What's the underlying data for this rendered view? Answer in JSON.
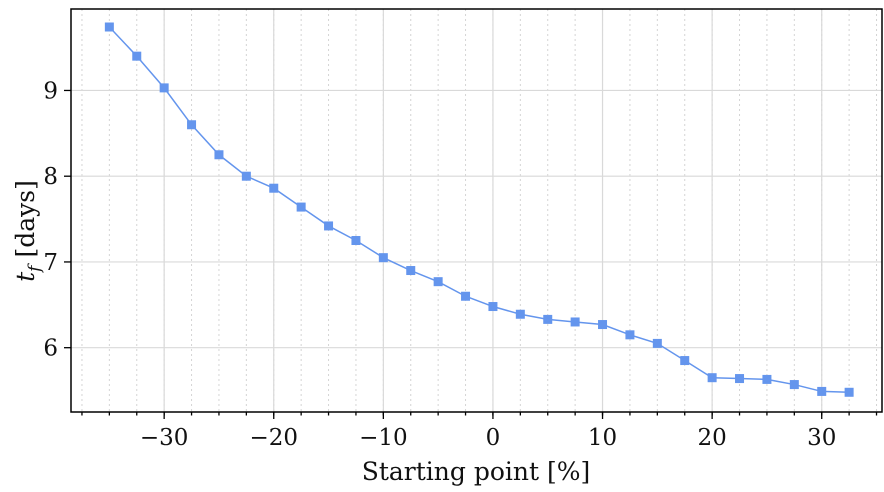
{
  "chart_data": {
    "type": "line",
    "title": "",
    "xlabel": "Starting point [%]",
    "ylabel": "t_f [days]",
    "ylabel_parts": {
      "var": "t",
      "sub": "f",
      "unit": "[days]"
    },
    "xlim": [
      -38.5,
      35.5
    ],
    "ylim": [
      5.25,
      9.95
    ],
    "x_ticks": [
      -30,
      -20,
      -10,
      0,
      10,
      20,
      30
    ],
    "x_tick_labels": [
      "−30",
      "−20",
      "−10",
      "0",
      "10",
      "20",
      "30"
    ],
    "y_ticks": [
      6,
      7,
      8,
      9
    ],
    "y_tick_labels": [
      "6",
      "7",
      "8",
      "9"
    ],
    "x_minor_step": 2.5,
    "grid": true,
    "legend": "none",
    "marker": "square",
    "color": "#6495ed",
    "series": [
      {
        "x": [
          -35,
          -32.5,
          -30,
          -27.5,
          -25,
          -22.5,
          -20,
          -17.5,
          -15,
          -12.5,
          -10,
          -7.5,
          -5,
          -2.5,
          0,
          2.5,
          5,
          7.5,
          10,
          12.5,
          15,
          17.5,
          20,
          22.5,
          25,
          27.5,
          30,
          32.5
        ],
        "values": [
          9.74,
          9.4,
          9.03,
          8.6,
          8.25,
          8.0,
          7.86,
          7.64,
          7.42,
          7.25,
          7.05,
          6.9,
          6.77,
          6.6,
          6.48,
          6.39,
          6.33,
          6.3,
          6.27,
          6.15,
          6.05,
          5.85,
          5.65,
          5.64,
          5.63,
          5.57,
          5.49,
          5.48
        ]
      }
    ]
  }
}
